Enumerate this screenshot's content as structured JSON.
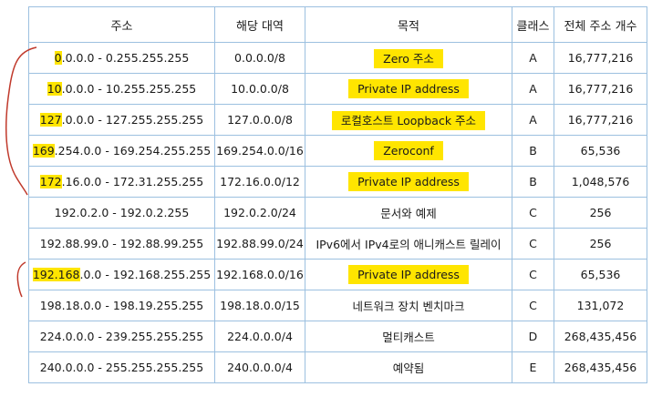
{
  "headers": [
    "주소",
    "해당 대역",
    "목적",
    "클래스",
    "전체 주소 개수"
  ],
  "rows": [
    {
      "addr_hl": "0",
      "addr_rest": ".0.0.0 - 0.255.255.255",
      "block": "0.0.0.0/8",
      "purpose": "Zero 주소",
      "purpose_hl": true,
      "cls": "A",
      "count": "16,777,216"
    },
    {
      "addr_hl": "10",
      "addr_rest": ".0.0.0 - 10.255.255.255",
      "block": "10.0.0.0/8",
      "purpose": "Private IP address",
      "purpose_hl": true,
      "cls": "A",
      "count": "16,777,216"
    },
    {
      "addr_hl": "127",
      "addr_rest": ".0.0.0 - 127.255.255.255",
      "block": "127.0.0.0/8",
      "purpose": "로컬호스트 Loopback 주소",
      "purpose_hl": true,
      "cls": "A",
      "count": "16,777,216"
    },
    {
      "addr_hl": "169",
      "addr_rest": ".254.0.0 - 169.254.255.255",
      "block": "169.254.0.0/16",
      "purpose": "Zeroconf",
      "purpose_hl": true,
      "cls": "B",
      "count": "65,536"
    },
    {
      "addr_hl": "172",
      "addr_rest": ".16.0.0 - 172.31.255.255",
      "block": "172.16.0.0/12",
      "purpose": "Private IP address",
      "purpose_hl": true,
      "cls": "B",
      "count": "1,048,576"
    },
    {
      "addr_hl": "",
      "addr_rest": "192.0.2.0 - 192.0.2.255",
      "block": "192.0.2.0/24",
      "purpose": "문서와 예제",
      "purpose_hl": false,
      "cls": "C",
      "count": "256"
    },
    {
      "addr_hl": "",
      "addr_rest": "192.88.99.0 - 192.88.99.255",
      "block": "192.88.99.0/24",
      "purpose": "IPv6에서 IPv4로의 애니캐스트 릴레이",
      "purpose_hl": false,
      "cls": "C",
      "count": "256"
    },
    {
      "addr_hl": "192.168",
      "addr_rest": ".0.0 - 192.168.255.255",
      "block": "192.168.0.0/16",
      "purpose": "Private IP address",
      "purpose_hl": true,
      "cls": "C",
      "count": "65,536"
    },
    {
      "addr_hl": "",
      "addr_rest": "198.18.0.0 - 198.19.255.255",
      "block": "198.18.0.0/15",
      "purpose": "네트워크 장치 벤치마크",
      "purpose_hl": false,
      "cls": "C",
      "count": "131,072"
    },
    {
      "addr_hl": "",
      "addr_rest": "224.0.0.0 - 239.255.255.255",
      "block": "224.0.0.0/4",
      "purpose": "멀티캐스트",
      "purpose_hl": false,
      "cls": "D",
      "count": "268,435,456"
    },
    {
      "addr_hl": "",
      "addr_rest": "240.0.0.0 - 255.255.255.255",
      "block": "240.0.0.0/4",
      "purpose": "예약됨",
      "purpose_hl": false,
      "cls": "E",
      "count": "268,435,456"
    }
  ],
  "colors": {
    "highlight": "#ffe500",
    "border": "#9cc0e0",
    "annotation": "#c0392b"
  }
}
